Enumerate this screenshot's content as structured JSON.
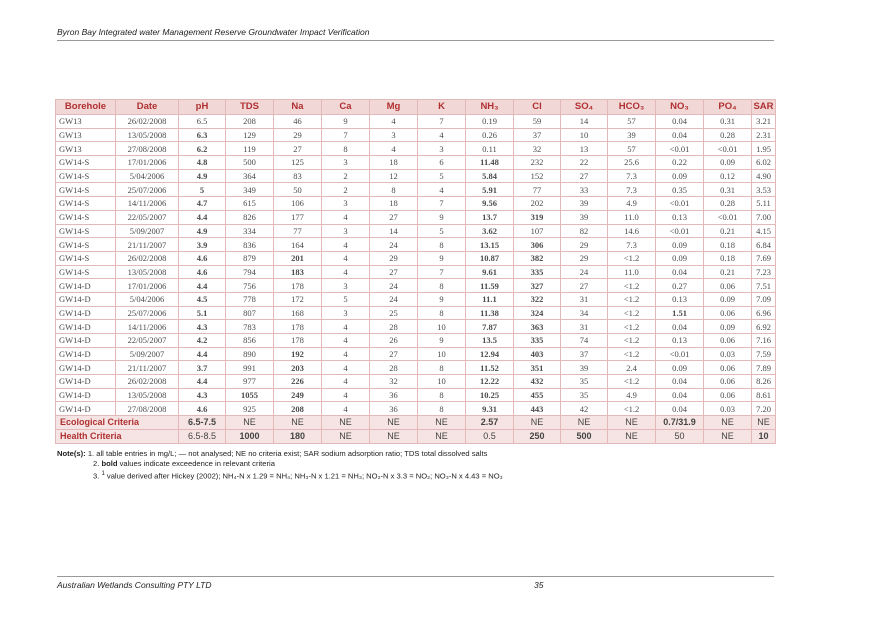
{
  "header": {
    "title": "Byron Bay Integrated water Management Reserve Groundwater Impact Verification"
  },
  "table": {
    "columns": [
      "Borehole",
      "Date",
      "pH",
      "TDS",
      "Na",
      "Ca",
      "Mg",
      "K",
      "NH₃",
      "Cl",
      "SO₄",
      "HCO₃",
      "NO₃",
      "PO₄",
      "SAR"
    ],
    "rows": [
      {
        "cells": [
          "GW13",
          "26/02/2008",
          "6.5",
          "208",
          "46",
          "9",
          "4",
          "7",
          "0.19",
          "59",
          "14",
          "57",
          "0.04",
          "0.31",
          "3.21"
        ],
        "bold": []
      },
      {
        "cells": [
          "GW13",
          "13/05/2008",
          "6.3",
          "129",
          "29",
          "7",
          "3",
          "4",
          "0.26",
          "37",
          "10",
          "39",
          "0.04",
          "0.28",
          "2.31"
        ],
        "bold": [
          2
        ]
      },
      {
        "cells": [
          "GW13",
          "27/08/2008",
          "6.2",
          "119",
          "27",
          "8",
          "4",
          "3",
          "0.11",
          "32",
          "13",
          "57",
          "<0.01",
          "<0.01",
          "1.95"
        ],
        "bold": [
          2
        ]
      },
      {
        "cells": [
          "GW14-S",
          "17/01/2006",
          "4.8",
          "500",
          "125",
          "3",
          "18",
          "6",
          "11.48",
          "232",
          "22",
          "25.6",
          "0.22",
          "0.09",
          "6.02"
        ],
        "bold": [
          2,
          8
        ]
      },
      {
        "cells": [
          "GW14-S",
          "5/04/2006",
          "4.9",
          "364",
          "83",
          "2",
          "12",
          "5",
          "5.84",
          "152",
          "27",
          "7.3",
          "0.09",
          "0.12",
          "4.90"
        ],
        "bold": [
          2,
          8
        ]
      },
      {
        "cells": [
          "GW14-S",
          "25/07/2006",
          "5",
          "349",
          "50",
          "2",
          "8",
          "4",
          "5.91",
          "77",
          "33",
          "7.3",
          "0.35",
          "0.31",
          "3.53"
        ],
        "bold": [
          2,
          8
        ]
      },
      {
        "cells": [
          "GW14-S",
          "14/11/2006",
          "4.7",
          "615",
          "106",
          "3",
          "18",
          "7",
          "9.56",
          "202",
          "39",
          "4.9",
          "<0.01",
          "0.28",
          "5.11"
        ],
        "bold": [
          2,
          8
        ]
      },
      {
        "cells": [
          "GW14-S",
          "22/05/2007",
          "4.4",
          "826",
          "177",
          "4",
          "27",
          "9",
          "13.7",
          "319",
          "39",
          "11.0",
          "0.13",
          "<0.01",
          "7.00"
        ],
        "bold": [
          2,
          8,
          9
        ]
      },
      {
        "cells": [
          "GW14-S",
          "5/09/2007",
          "4.9",
          "334",
          "77",
          "3",
          "14",
          "5",
          "3.62",
          "107",
          "82",
          "14.6",
          "<0.01",
          "0.21",
          "4.15"
        ],
        "bold": [
          2,
          8
        ]
      },
      {
        "cells": [
          "GW14-S",
          "21/11/2007",
          "3.9",
          "836",
          "164",
          "4",
          "24",
          "8",
          "13.15",
          "306",
          "29",
          "7.3",
          "0.09",
          "0.18",
          "6.84"
        ],
        "bold": [
          2,
          8,
          9
        ]
      },
      {
        "cells": [
          "GW14-S",
          "26/02/2008",
          "4.6",
          "879",
          "201",
          "4",
          "29",
          "9",
          "10.87",
          "382",
          "29",
          "<1.2",
          "0.09",
          "0.18",
          "7.69"
        ],
        "bold": [
          2,
          4,
          8,
          9
        ]
      },
      {
        "cells": [
          "GW14-S",
          "13/05/2008",
          "4.6",
          "794",
          "183",
          "4",
          "27",
          "7",
          "9.61",
          "335",
          "24",
          "11.0",
          "0.04",
          "0.21",
          "7.23"
        ],
        "bold": [
          2,
          4,
          8,
          9
        ]
      },
      {
        "cells": [
          "GW14-D",
          "17/01/2006",
          "4.4",
          "756",
          "178",
          "3",
          "24",
          "8",
          "11.59",
          "327",
          "27",
          "<1.2",
          "0.27",
          "0.06",
          "7.51"
        ],
        "bold": [
          2,
          8,
          9
        ]
      },
      {
        "cells": [
          "GW14-D",
          "5/04/2006",
          "4.5",
          "778",
          "172",
          "5",
          "24",
          "9",
          "11.1",
          "322",
          "31",
          "<1.2",
          "0.13",
          "0.09",
          "7.09"
        ],
        "bold": [
          2,
          8,
          9
        ]
      },
      {
        "cells": [
          "GW14-D",
          "25/07/2006",
          "5.1",
          "807",
          "168",
          "3",
          "25",
          "8",
          "11.38",
          "324",
          "34",
          "<1.2",
          "1.51",
          "0.06",
          "6.96"
        ],
        "bold": [
          2,
          8,
          9,
          12
        ]
      },
      {
        "cells": [
          "GW14-D",
          "14/11/2006",
          "4.3",
          "783",
          "178",
          "4",
          "28",
          "10",
          "7.87",
          "363",
          "31",
          "<1.2",
          "0.04",
          "0.09",
          "6.92"
        ],
        "bold": [
          2,
          8,
          9
        ]
      },
      {
        "cells": [
          "GW14-D",
          "22/05/2007",
          "4.2",
          "856",
          "178",
          "4",
          "26",
          "9",
          "13.5",
          "335",
          "74",
          "<1.2",
          "0.13",
          "0.06",
          "7.16"
        ],
        "bold": [
          2,
          8,
          9
        ]
      },
      {
        "cells": [
          "GW14-D",
          "5/09/2007",
          "4.4",
          "890",
          "192",
          "4",
          "27",
          "10",
          "12.94",
          "403",
          "37",
          "<1.2",
          "<0.01",
          "0.03",
          "7.59"
        ],
        "bold": [
          2,
          4,
          8,
          9
        ]
      },
      {
        "cells": [
          "GW14-D",
          "21/11/2007",
          "3.7",
          "991",
          "203",
          "4",
          "28",
          "8",
          "11.52",
          "351",
          "39",
          "2.4",
          "0.09",
          "0.06",
          "7.89"
        ],
        "bold": [
          2,
          4,
          8,
          9
        ]
      },
      {
        "cells": [
          "GW14-D",
          "26/02/2008",
          "4.4",
          "977",
          "226",
          "4",
          "32",
          "10",
          "12.22",
          "432",
          "35",
          "<1.2",
          "0.04",
          "0.06",
          "8.26"
        ],
        "bold": [
          2,
          4,
          8,
          9
        ]
      },
      {
        "cells": [
          "GW14-D",
          "13/05/2008",
          "4.3",
          "1055",
          "249",
          "4",
          "36",
          "8",
          "10.25",
          "455",
          "35",
          "4.9",
          "0.04",
          "0.06",
          "8.61"
        ],
        "bold": [
          2,
          3,
          4,
          8,
          9
        ]
      },
      {
        "cells": [
          "GW14-D",
          "27/08/2008",
          "4.6",
          "925",
          "208",
          "4",
          "36",
          "8",
          "9.31",
          "443",
          "42",
          "<1.2",
          "0.04",
          "0.03",
          "7.20"
        ],
        "bold": [
          2,
          4,
          8,
          9
        ]
      }
    ],
    "ecological": {
      "label": "Ecological Criteria",
      "values": [
        "6.5-7.5",
        "NE",
        "NE",
        "NE",
        "NE",
        "NE",
        "2.57",
        "NE",
        "NE",
        "NE",
        "0.7/31.9",
        "NE",
        "NE"
      ],
      "bold": [
        0,
        6,
        10
      ]
    },
    "health": {
      "label": "Health Criteria",
      "values": [
        "6.5-8.5",
        "1000",
        "180",
        "NE",
        "NE",
        "NE",
        "0.5",
        "250",
        "500",
        "NE",
        "50",
        "NE",
        "10"
      ],
      "bold": [
        1,
        2,
        7,
        8,
        12
      ]
    }
  },
  "notes": {
    "label": "Note(s):",
    "line1": "1. all table entries in mg/L; — not analysed; NE no criteria exist; SAR sodium adsorption ratio; TDS total dissolved salts",
    "line2_prefix": "2. ",
    "line2_bold": "bold",
    "line2_rest": " values indicate exceedence  in relevant criteria",
    "line3_prefix": "3. ",
    "line3_sup": "1",
    "line3_rest": " value derived after Hickey (2002); NH₄-N x 1.29 = NH₄; NH₃-N x 1.21 = NH₃; NO₂-N x 3.3 = NO₂; NO₃-N x 4.43 = NO₃"
  },
  "footer": {
    "company": "Australian Wetlands Consulting PTY LTD",
    "page": "35"
  }
}
